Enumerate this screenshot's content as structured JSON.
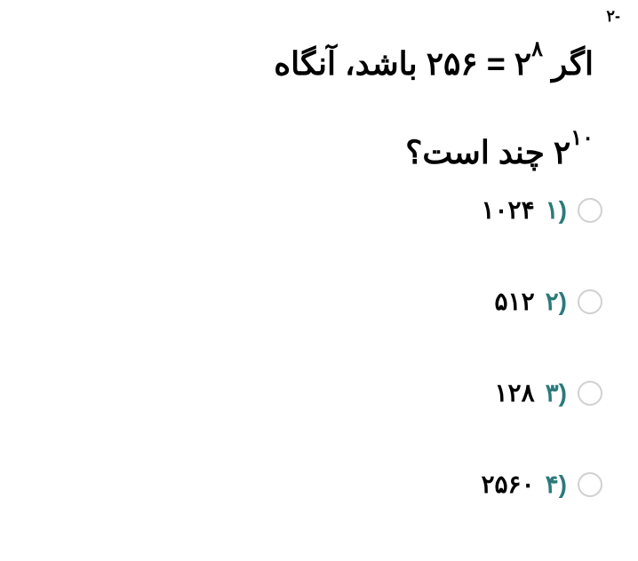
{
  "question": {
    "number": "-۲",
    "line1_part1": "اگر",
    "line1_math_base1": "۲",
    "line1_math_exp1": "۸",
    "line1_math_eq": " = ",
    "line1_math_val": "۲۵۶",
    "line1_part2": "باشد، آنگاه",
    "line2_math_base": "۲",
    "line2_math_exp": "۱۰",
    "line2_part2": "چند است؟"
  },
  "options": [
    {
      "num": "۱)",
      "text": "۱۰۲۴"
    },
    {
      "num": "۲)",
      "text": "۵۱۲"
    },
    {
      "num": "۳)",
      "text": "۱۲۸"
    },
    {
      "num": "۴)",
      "text": "۲۵۶۰"
    }
  ],
  "colors": {
    "text_primary": "#000000",
    "option_number": "#2c7a7b",
    "radio_border": "#d0d0d0",
    "background": "#ffffff"
  },
  "typography": {
    "question_fontsize": 36,
    "option_fontsize": 28,
    "number_fontsize": 18,
    "sup_fontsize": 24
  }
}
